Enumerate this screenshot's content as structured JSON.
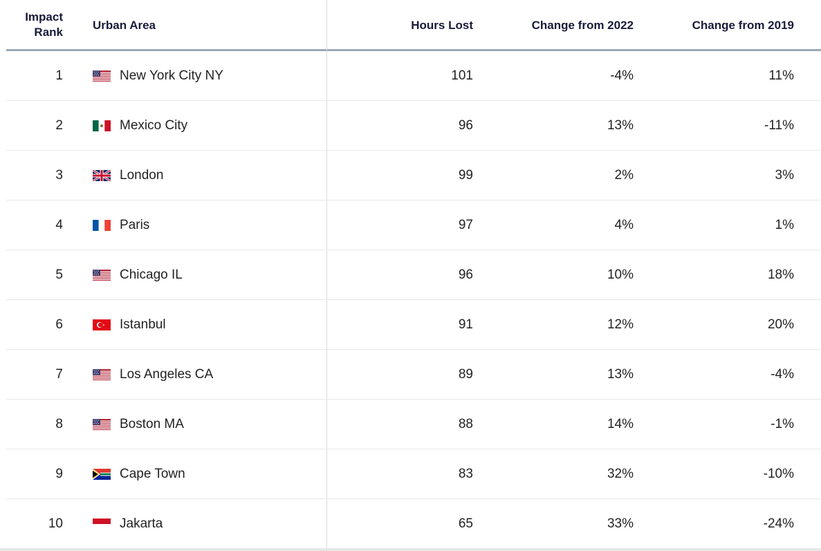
{
  "table": {
    "headers": {
      "rank_line1": "Impact",
      "rank_line2": "Rank",
      "area": "Urban Area",
      "hours": "Hours Lost",
      "change_2022": "Change from 2022",
      "change_2019": "Change from 2019"
    },
    "rows": [
      {
        "rank": "1",
        "flag": "us-flag-icon",
        "area": "New York City NY",
        "hours": "101",
        "change_2022": "-4%",
        "change_2019": "11%"
      },
      {
        "rank": "2",
        "flag": "mexico-flag-icon",
        "area": "Mexico City",
        "hours": "96",
        "change_2022": "13%",
        "change_2019": "-11%"
      },
      {
        "rank": "3",
        "flag": "uk-flag-icon",
        "area": "London",
        "hours": "99",
        "change_2022": "2%",
        "change_2019": "3%"
      },
      {
        "rank": "4",
        "flag": "france-flag-icon",
        "area": "Paris",
        "hours": "97",
        "change_2022": "4%",
        "change_2019": "1%"
      },
      {
        "rank": "5",
        "flag": "us-flag-icon",
        "area": "Chicago IL",
        "hours": "96",
        "change_2022": "10%",
        "change_2019": "18%"
      },
      {
        "rank": "6",
        "flag": "turkey-flag-icon",
        "area": "Istanbul",
        "hours": "91",
        "change_2022": "12%",
        "change_2019": "20%"
      },
      {
        "rank": "7",
        "flag": "us-flag-icon",
        "area": "Los Angeles CA",
        "hours": "89",
        "change_2022": "13%",
        "change_2019": "-4%"
      },
      {
        "rank": "8",
        "flag": "us-flag-icon",
        "area": "Boston MA",
        "hours": "88",
        "change_2022": "14%",
        "change_2019": "-1%"
      },
      {
        "rank": "9",
        "flag": "south-africa-flag-icon",
        "area": "Cape Town",
        "hours": "83",
        "change_2022": "32%",
        "change_2019": "-10%"
      },
      {
        "rank": "10",
        "flag": "indonesia-flag-icon",
        "area": "Jakarta",
        "hours": "65",
        "change_2022": "33%",
        "change_2019": "-24%"
      }
    ]
  }
}
